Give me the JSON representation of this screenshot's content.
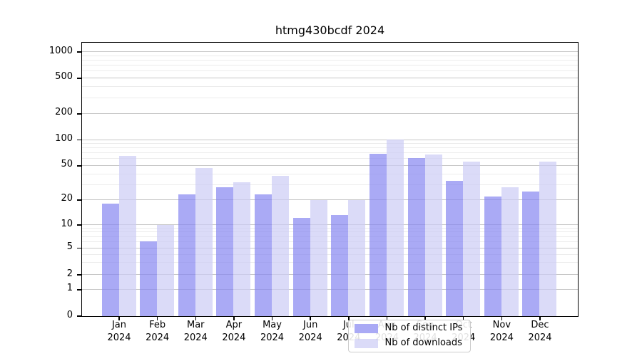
{
  "chart_data": {
    "type": "bar",
    "title": "htmg430bcdf 2024",
    "months": [
      "Jan",
      "Feb",
      "Mar",
      "Apr",
      "May",
      "Jun",
      "Jul",
      "Aug",
      "Sep",
      "Oct",
      "Nov",
      "Dec"
    ],
    "year": "2024",
    "series": [
      {
        "name": "Nb of distinct IPs",
        "color": "#8686f1",
        "values": [
          18,
          6,
          23,
          28,
          23,
          12,
          13,
          69,
          61,
          33,
          22,
          25
        ]
      },
      {
        "name": "Nb of downloads",
        "color": "#ccccf5",
        "values": [
          65,
          10,
          47,
          32,
          38,
          20,
          20,
          100,
          67,
          55,
          28,
          55
        ]
      }
    ],
    "yticks": [
      0,
      1,
      2,
      5,
      10,
      20,
      50,
      100,
      200,
      500,
      1000
    ],
    "ylim": [
      0,
      1270
    ],
    "yscale": "log-with-zero",
    "grid": true,
    "legend_position": "lower-center"
  }
}
